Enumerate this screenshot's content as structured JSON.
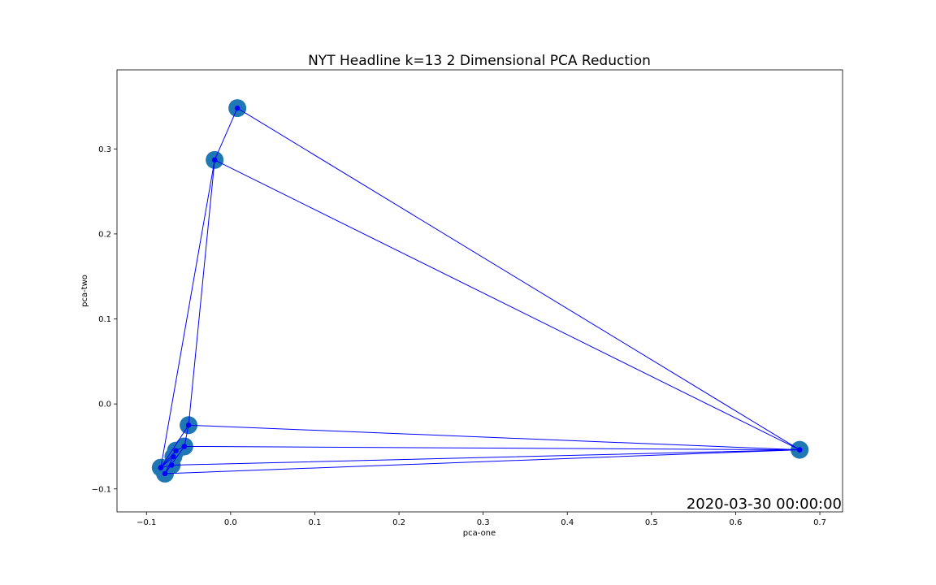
{
  "chart_data": {
    "type": "scatter",
    "title": "NYT Headline k=13 2 Dimensional PCA Reduction",
    "xlabel": "pca-one",
    "ylabel": "pca-two",
    "xlim": [
      -0.135,
      0.727
    ],
    "ylim": [
      -0.127,
      0.393
    ],
    "xticks": [
      -0.1,
      0.0,
      0.1,
      0.2,
      0.3,
      0.4,
      0.5,
      0.6,
      0.7
    ],
    "xtick_labels": [
      "−0.1",
      "0.0",
      "0.1",
      "0.2",
      "0.3",
      "0.4",
      "0.5",
      "0.6",
      "0.7"
    ],
    "yticks": [
      -0.1,
      0.0,
      0.1,
      0.2,
      0.3
    ],
    "ytick_labels": [
      "−0.1",
      "0.0",
      "0.1",
      "0.2",
      "0.3"
    ],
    "grid": false,
    "timestamp": "2020-03-30 00:00:00",
    "marker_color": "#1f77b4",
    "line_color": "#0000ff",
    "points": [
      {
        "x": -0.083,
        "y": -0.075
      },
      {
        "x": -0.078,
        "y": -0.082
      },
      {
        "x": -0.07,
        "y": -0.072
      },
      {
        "x": -0.068,
        "y": -0.062
      },
      {
        "x": -0.065,
        "y": -0.055
      },
      {
        "x": -0.055,
        "y": -0.05
      },
      {
        "x": -0.05,
        "y": -0.025
      },
      {
        "x": -0.019,
        "y": 0.287
      },
      {
        "x": 0.008,
        "y": 0.348
      },
      {
        "x": 0.676,
        "y": -0.054
      }
    ],
    "path": [
      {
        "x": -0.083,
        "y": -0.075
      },
      {
        "x": -0.019,
        "y": 0.287
      },
      {
        "x": 0.008,
        "y": 0.348
      },
      {
        "x": 0.676,
        "y": -0.054
      },
      {
        "x": -0.019,
        "y": 0.287
      },
      {
        "x": -0.05,
        "y": -0.025
      },
      {
        "x": -0.083,
        "y": -0.075
      },
      {
        "x": -0.065,
        "y": -0.055
      },
      {
        "x": -0.055,
        "y": -0.05
      },
      {
        "x": 0.676,
        "y": -0.054
      },
      {
        "x": -0.05,
        "y": -0.025
      },
      {
        "x": -0.055,
        "y": -0.05
      },
      {
        "x": -0.078,
        "y": -0.082
      },
      {
        "x": 0.676,
        "y": -0.054
      },
      {
        "x": -0.07,
        "y": -0.072
      },
      {
        "x": -0.083,
        "y": -0.075
      },
      {
        "x": -0.068,
        "y": -0.062
      },
      {
        "x": -0.078,
        "y": -0.082
      }
    ]
  }
}
